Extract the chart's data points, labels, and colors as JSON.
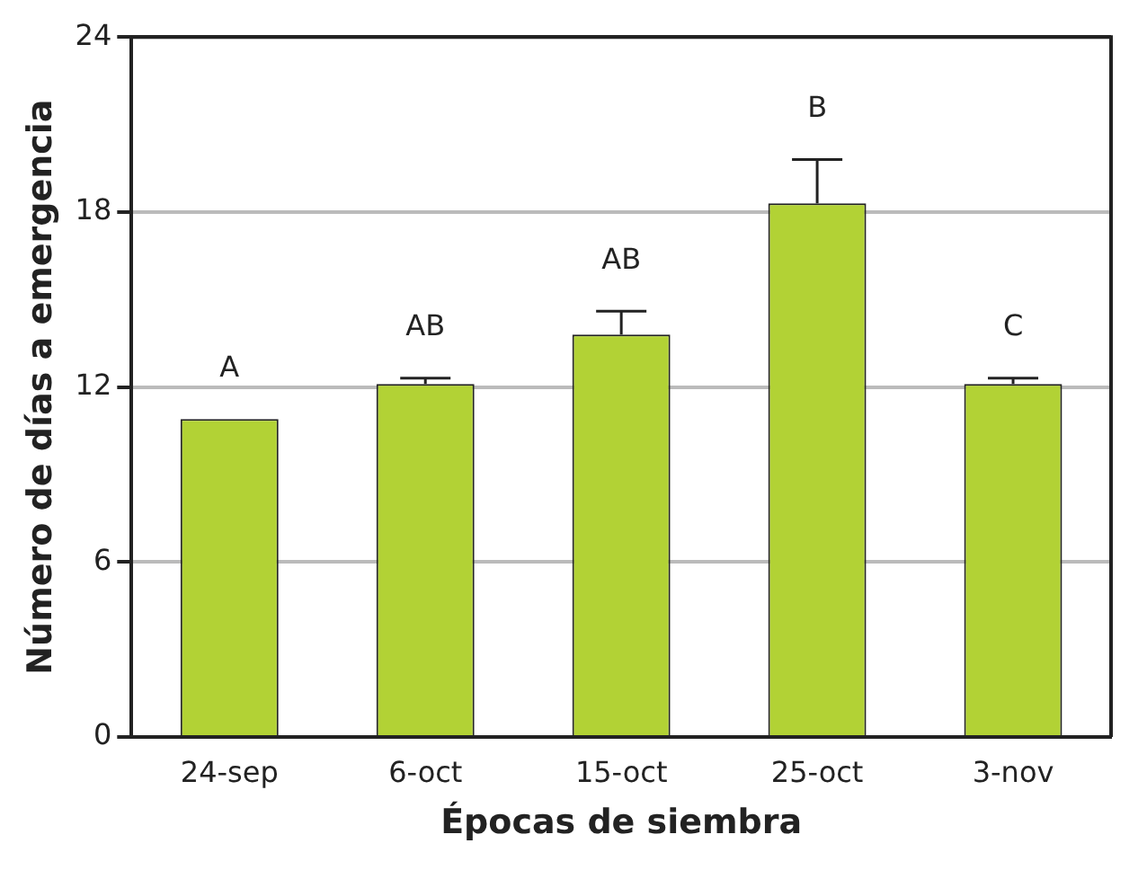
{
  "chart_data": {
    "type": "bar",
    "xlabel": "Épocas de siembra",
    "ylabel": "Número de días a emergencia",
    "categories": [
      "24-sep",
      "6-oct",
      "15-oct",
      "25-oct",
      "3-nov"
    ],
    "values": [
      10.9,
      12.1,
      13.8,
      18.3,
      12.1
    ],
    "errors": [
      null,
      0.2,
      0.8,
      1.5,
      0.2
    ],
    "color": "#b2d235",
    "ylim": [
      0,
      24
    ],
    "yticks": [
      0,
      6,
      12,
      18,
      24
    ],
    "grid": "y",
    "legend": false,
    "annotations": [
      "A",
      "AB",
      "AB",
      "B",
      "C"
    ]
  }
}
